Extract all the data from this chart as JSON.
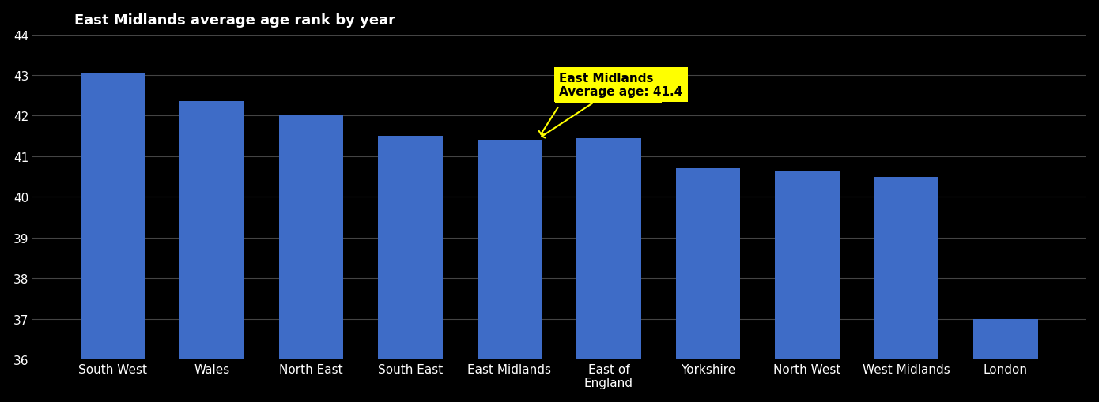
{
  "categories": [
    "South West",
    "Wales",
    "North East",
    "South East",
    "East Midlands",
    "East of\nEngland",
    "Yorkshire",
    "North West",
    "West Midlands",
    "London"
  ],
  "values": [
    43.05,
    42.35,
    42.0,
    41.5,
    41.4,
    41.45,
    40.7,
    40.65,
    40.5,
    37.0
  ],
  "bar_color": "#3E6CC7",
  "highlight_index": 4,
  "annotation_title": "East Midlands",
  "annotation_body": "Average age: ",
  "annotation_value": "41.4",
  "annotation_bg": "#FFFF00",
  "annotation_text_color": "#000000",
  "background_color": "#000000",
  "text_color": "#FFFFFF",
  "ylim": [
    36,
    44
  ],
  "yticks": [
    36,
    37,
    38,
    39,
    40,
    41,
    42,
    43,
    44
  ],
  "grid_color": "#444444",
  "title": "East Midlands average age rank by year"
}
